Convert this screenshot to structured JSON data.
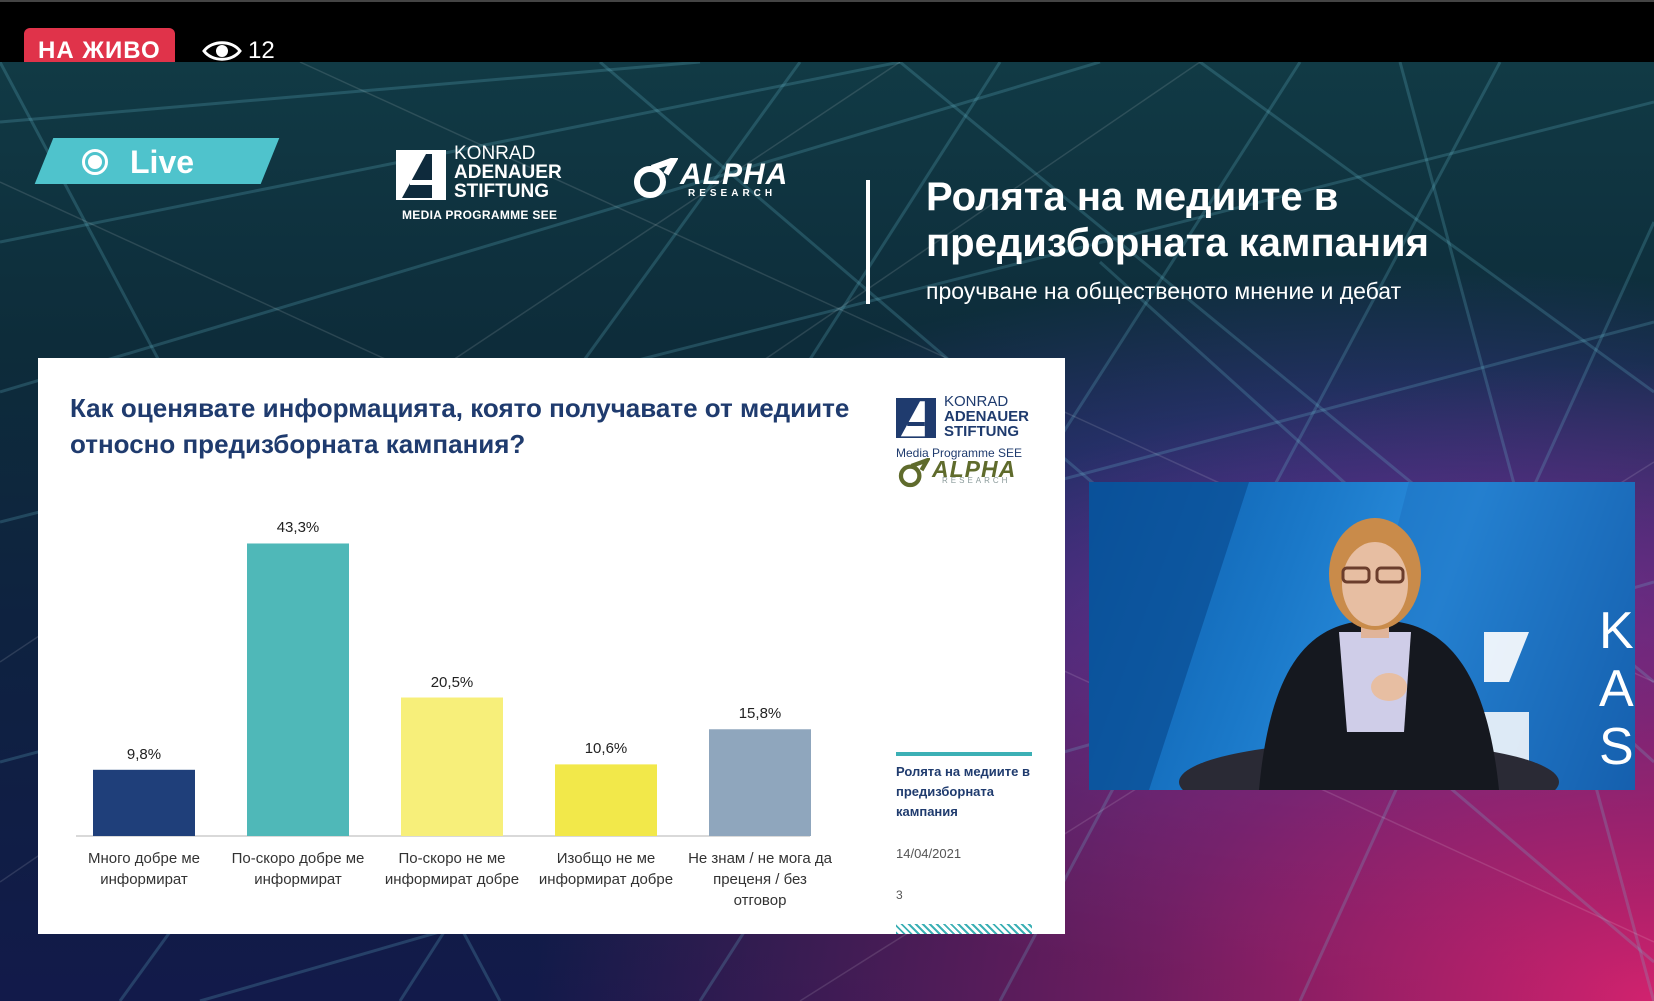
{
  "stream": {
    "live_badge": "НА ЖИВО",
    "viewer_count": "12"
  },
  "header": {
    "live_tag": "Live",
    "kas_logo": {
      "line1": "KONRAD",
      "line2": "ADENAUER",
      "line3": "STIFTUNG",
      "sub": "MEDIA PROGRAMME SEE"
    },
    "alpha_logo": {
      "word": "ALPHA",
      "sub": "RESEARCH"
    },
    "title": "Ролята на медиите в предизборната кампания",
    "subtitle": "проучване на общественото мнение и дебат"
  },
  "slide": {
    "question": "Как оценявате информацията, която получавате от медиите относно предизборната кампания?",
    "kas_logo": {
      "line1": "KONRAD",
      "line2": "ADENAUER",
      "line3": "STIFTUNG",
      "sub": "Media Programme SEE"
    },
    "alpha_logo": {
      "word": "ALPHA",
      "sub": "RESEARCH"
    },
    "side_title": "Ролята на медиите в предизборната кампания",
    "side_date": "14/04/2021",
    "page_number": "3"
  },
  "chart_data": {
    "type": "bar",
    "categories": [
      "Много добре ме информират",
      "По-скоро добре ме информират",
      "По-скоро не ме информират добре",
      "Изобщо не ме информират добре",
      "Не знам / не мога да преценя / без отговор"
    ],
    "values": [
      9.8,
      43.3,
      20.5,
      10.6,
      15.8
    ],
    "value_labels": [
      "9,8%",
      "43,3%",
      "20,5%",
      "10,6%",
      "15,8%"
    ],
    "colors": [
      "#1f3f7a",
      "#4fb8b8",
      "#f7ef7a",
      "#f2e84a",
      "#8fa6bd"
    ],
    "ylim": [
      0,
      45
    ],
    "grid": false
  },
  "camera": {
    "backdrop_letters": [
      "K",
      "A",
      "S"
    ]
  },
  "colors": {
    "live_red": "#e0334a",
    "accent_teal": "#4fc3cc",
    "slide_navy": "#1f3b6e"
  }
}
